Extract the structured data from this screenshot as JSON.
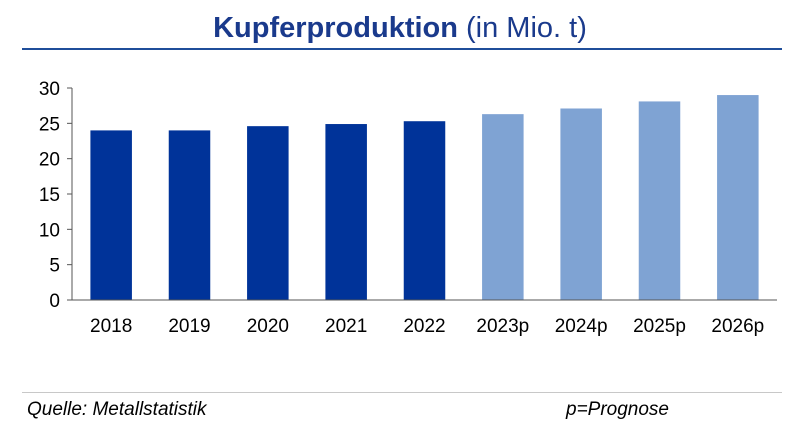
{
  "title": {
    "bold": "Kupferproduktion",
    "rest": " (in Mio. t)"
  },
  "footer": {
    "source": "Quelle: Metallstatistik",
    "note": "p=Prognose"
  },
  "colors": {
    "actual": "#003399",
    "forecast": "#7fa3d3",
    "title": "#1a3a8c"
  },
  "chart_data": {
    "type": "bar",
    "categories": [
      "2018",
      "2019",
      "2020",
      "2021",
      "2022",
      "2023p",
      "2024p",
      "2025p",
      "2026p"
    ],
    "values": [
      24.0,
      24.0,
      24.6,
      24.9,
      25.3,
      26.3,
      27.1,
      28.1,
      29.0
    ],
    "forecast": [
      false,
      false,
      false,
      false,
      false,
      true,
      true,
      true,
      true
    ],
    "ylim": [
      0,
      30
    ],
    "yticks": [
      0,
      5,
      10,
      15,
      20,
      25,
      30
    ],
    "title": "Kupferproduktion (in Mio. t)",
    "xlabel": "",
    "ylabel": "",
    "grid": false
  }
}
